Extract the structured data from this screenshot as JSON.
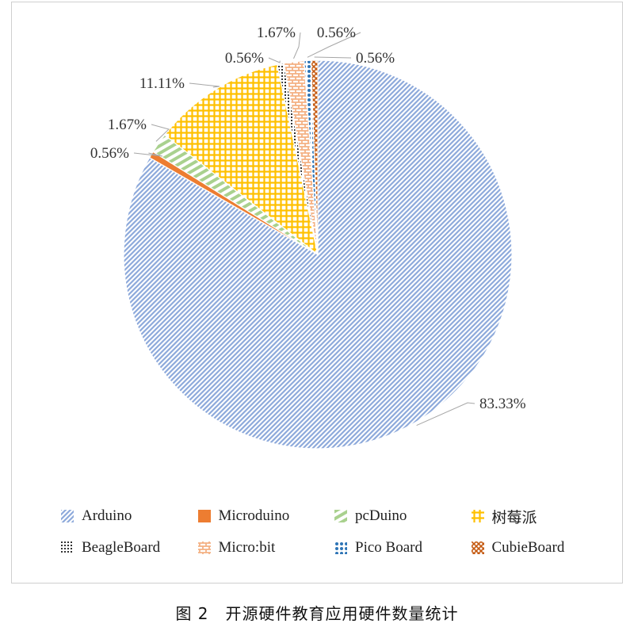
{
  "chart_data": {
    "type": "pie",
    "categories": [
      "Arduino",
      "Microduino",
      "pcDuino",
      "树莓派",
      "BeagleBoard",
      "Micro:bit",
      "Pico Board",
      "CubieBoard"
    ],
    "values": [
      83.33,
      0.56,
      1.67,
      11.11,
      0.56,
      1.67,
      0.56,
      0.56
    ],
    "labels": [
      "83.33%",
      "0.56%",
      "1.67%",
      "11.11%",
      "0.56%",
      "1.67%",
      "0.56%",
      "0.56%"
    ],
    "colors": [
      "#8eaadb",
      "#ed7d31",
      "#a9d18e",
      "#ffc000",
      "#333333",
      "#f4b183",
      "#2e75b6",
      "#c55a11"
    ],
    "legend_position": "bottom"
  },
  "caption": "图 2　开源硬件教育应用硬件数量统计"
}
